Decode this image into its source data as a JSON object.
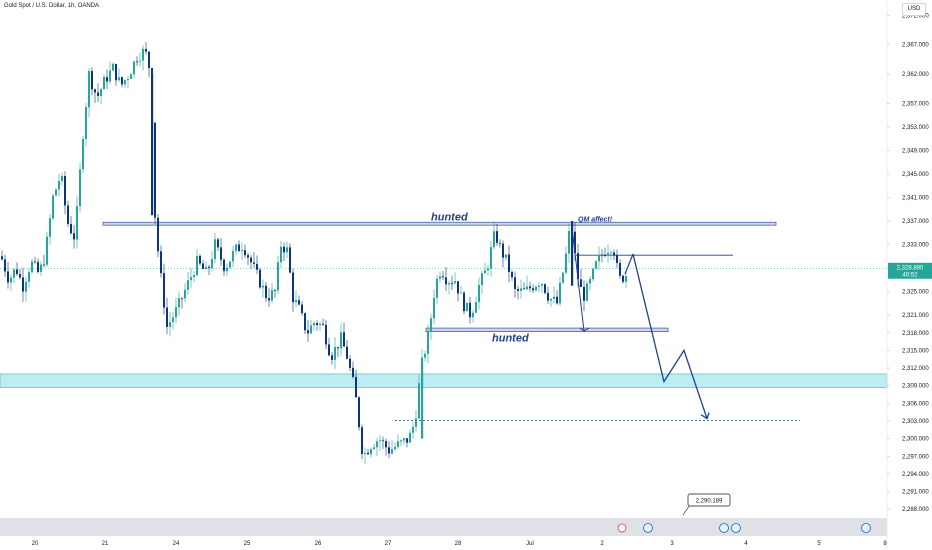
{
  "header": {
    "symbol": "Gold Spot / U.S. Dollar, 1h, OANDA",
    "currency": "USD"
  },
  "colors": {
    "up": "#26a69a",
    "down": "#0c3483",
    "zone_fill": "#b2ebf2",
    "rect_border": "#1f3f8f",
    "path": "#1f3f8f",
    "price_line": "#26a69a"
  },
  "chart_data": {
    "type": "candlestick",
    "title": "Gold Spot / U.S. Dollar, 1h, OANDA",
    "x_ticks": [
      "20",
      "21",
      "24",
      "25",
      "26",
      "27",
      "28",
      "Jul",
      "2",
      "3",
      "4",
      "5",
      "8"
    ],
    "y_ticks": [
      "2,372.000",
      "2,367.000",
      "2,362.000",
      "2,357.000",
      "2,353.000",
      "2,349.000",
      "2,345.000",
      "2,341.000",
      "2,337.000",
      "2,333.000",
      "2,329.000",
      "2,325.000",
      "2,321.000",
      "2,318.000",
      "2,315.000",
      "2,312.000",
      "2,309.000",
      "2,306.000",
      "2,303.000",
      "2,300.000",
      "2,297.000",
      "2,294.000",
      "2,291.000",
      "2,288.000"
    ],
    "ylim": [
      2286.5,
      2374.6
    ],
    "current_price": "2,328.890",
    "countdown": "40:52",
    "last_price": 2328.89,
    "annotations": {
      "hunted_top": "hunted",
      "hunted_bottom": "hunted",
      "qm": "QM affect!",
      "target": "2,290.189"
    },
    "levels": {
      "hunted_top": [
        2336.8,
        2336.3
      ],
      "hunted_bottom": [
        2318.8,
        2318.2
      ],
      "zone": [
        2311.0,
        2308.7
      ],
      "dashed": 2303.1,
      "resistance": 2331.2
    },
    "projection": [
      2331.4,
      2309.7,
      2315.0,
      2303.4
    ],
    "target_value": 2290.189,
    "candles_ohlc_anchors": [
      [
        0,
        2331
      ],
      [
        8,
        2327
      ],
      [
        15,
        2329
      ],
      [
        22,
        2326
      ],
      [
        30,
        2330
      ],
      [
        38,
        2328
      ],
      [
        44,
        2331
      ],
      [
        52,
        2341
      ],
      [
        60,
        2345
      ],
      [
        66,
        2337
      ],
      [
        74,
        2334
      ],
      [
        82,
        2352
      ],
      [
        88,
        2362
      ],
      [
        96,
        2358
      ],
      [
        104,
        2361
      ],
      [
        112,
        2363
      ],
      [
        120,
        2360
      ],
      [
        128,
        2362
      ],
      [
        136,
        2365
      ],
      [
        144,
        2366
      ],
      [
        150,
        2362
      ],
      [
        153,
        2340
      ],
      [
        158,
        2330
      ],
      [
        166,
        2319
      ],
      [
        176,
        2322
      ],
      [
        186,
        2326
      ],
      [
        196,
        2330
      ],
      [
        206,
        2328
      ],
      [
        214,
        2333
      ],
      [
        224,
        2329
      ],
      [
        234,
        2332
      ],
      [
        242,
        2333
      ],
      [
        250,
        2330
      ],
      [
        258,
        2327
      ],
      [
        266,
        2324
      ],
      [
        274,
        2325
      ],
      [
        280,
        2333
      ],
      [
        286,
        2332
      ],
      [
        292,
        2324
      ],
      [
        298,
        2322
      ],
      [
        306,
        2318
      ],
      [
        314,
        2320
      ],
      [
        322,
        2319
      ],
      [
        330,
        2314
      ],
      [
        340,
        2317
      ],
      [
        346,
        2314
      ],
      [
        354,
        2308
      ],
      [
        362,
        2297
      ],
      [
        370,
        2299
      ],
      [
        378,
        2300
      ],
      [
        388,
        2298
      ],
      [
        398,
        2299
      ],
      [
        408,
        2300
      ],
      [
        414,
        2303
      ],
      [
        420,
        2312
      ],
      [
        428,
        2318
      ],
      [
        434,
        2326
      ],
      [
        440,
        2329
      ],
      [
        446,
        2327
      ],
      [
        454,
        2327
      ],
      [
        462,
        2323
      ],
      [
        470,
        2321
      ],
      [
        478,
        2326
      ],
      [
        486,
        2329
      ],
      [
        494,
        2335
      ],
      [
        500,
        2332
      ],
      [
        506,
        2330
      ],
      [
        514,
        2325
      ],
      [
        524,
        2325
      ],
      [
        532,
        2326
      ],
      [
        540,
        2327
      ],
      [
        548,
        2324
      ],
      [
        556,
        2323
      ],
      [
        564,
        2330
      ],
      [
        570,
        2337
      ],
      [
        576,
        2328
      ],
      [
        582,
        2324
      ],
      [
        588,
        2326
      ],
      [
        596,
        2330
      ],
      [
        604,
        2332
      ],
      [
        612,
        2333
      ],
      [
        618,
        2327
      ],
      [
        626,
        2328
      ]
    ]
  }
}
